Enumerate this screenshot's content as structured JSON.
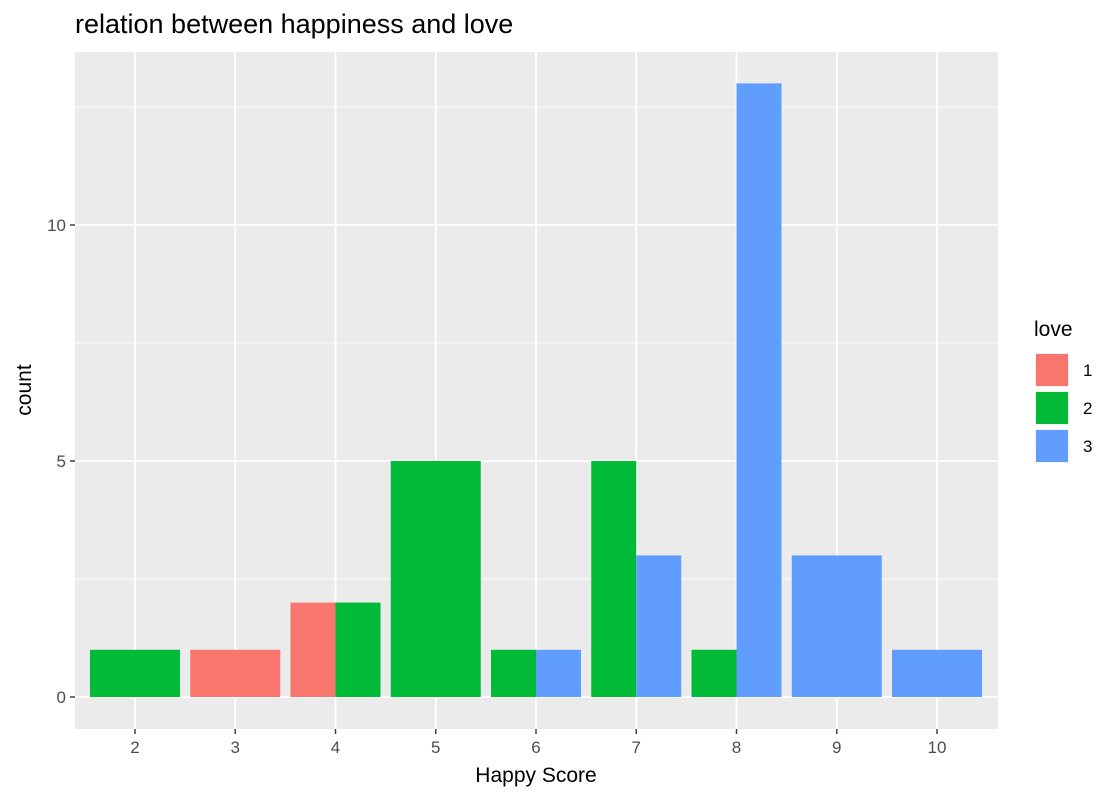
{
  "chart_data": {
    "type": "bar",
    "title": "relation between happiness and love",
    "xlabel": "Happy Score",
    "ylabel": "count",
    "categories": [
      "2",
      "3",
      "4",
      "5",
      "6",
      "7",
      "8",
      "9",
      "10"
    ],
    "ylim": [
      0,
      14
    ],
    "y_ticks": [
      0,
      5,
      10
    ],
    "position": "dodge",
    "grid": true,
    "legend": {
      "title": "love",
      "placement": "right",
      "entries": [
        "1",
        "2",
        "3"
      ]
    },
    "series": [
      {
        "name": "1",
        "color": "#F8766D",
        "values": [
          0,
          1,
          2,
          0,
          0,
          0,
          0,
          0,
          0
        ]
      },
      {
        "name": "2",
        "color": "#00BA38",
        "values": [
          1,
          0,
          2,
          5,
          1,
          5,
          1,
          0,
          0
        ]
      },
      {
        "name": "3",
        "color": "#619CFF",
        "values": [
          0,
          0,
          0,
          0,
          1,
          3,
          13,
          3,
          1
        ]
      }
    ]
  }
}
